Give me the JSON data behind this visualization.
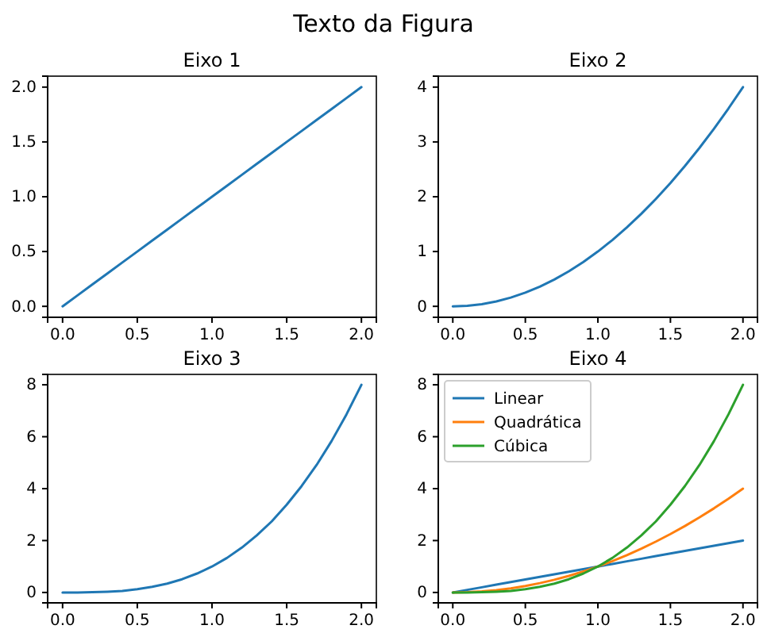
{
  "chart_data": [
    {
      "type": "other",
      "title": "Texto da Figura"
    },
    {
      "type": "line",
      "title": "Eixo 1",
      "x": [
        0,
        0.1,
        0.2,
        0.3,
        0.4,
        0.5,
        0.6,
        0.7,
        0.8,
        0.9,
        1,
        1.1,
        1.2,
        1.3,
        1.4,
        1.5,
        1.6,
        1.7,
        1.8,
        1.9,
        2
      ],
      "series": [
        {
          "color": "#1f77b4",
          "values": [
            0,
            0.1,
            0.2,
            0.3,
            0.4,
            0.5,
            0.6,
            0.7,
            0.8,
            0.9,
            1,
            1.1,
            1.2,
            1.3,
            1.4,
            1.5,
            1.6,
            1.7,
            1.8,
            1.9,
            2
          ]
        }
      ],
      "xlim": [
        -0.1,
        2.1
      ],
      "xticks": [
        {
          "value": 0,
          "label": "0.0"
        },
        {
          "value": 0.5,
          "label": "0.5"
        },
        {
          "value": 1,
          "label": "1.0"
        },
        {
          "value": 1.5,
          "label": "1.5"
        },
        {
          "value": 2,
          "label": "2.0"
        }
      ],
      "ylim": [
        -0.1,
        2.1
      ],
      "yticks": [
        {
          "value": 0,
          "label": "0.0"
        },
        {
          "value": 0.5,
          "label": "0.5"
        },
        {
          "value": 1,
          "label": "1.0"
        },
        {
          "value": 1.5,
          "label": "1.5"
        },
        {
          "value": 2,
          "label": "2.0"
        }
      ],
      "grid": false,
      "legend": false
    },
    {
      "type": "line",
      "title": "Eixo 2",
      "x": [
        0,
        0.1,
        0.2,
        0.3,
        0.4,
        0.5,
        0.6,
        0.7,
        0.8,
        0.9,
        1,
        1.1,
        1.2,
        1.3,
        1.4,
        1.5,
        1.6,
        1.7,
        1.8,
        1.9,
        2
      ],
      "series": [
        {
          "color": "#1f77b4",
          "values": [
            0,
            0.01,
            0.04,
            0.09,
            0.16,
            0.25,
            0.36,
            0.49,
            0.64,
            0.81,
            1,
            1.21,
            1.44,
            1.69,
            1.96,
            2.25,
            2.56,
            2.89,
            3.24,
            3.61,
            4
          ]
        }
      ],
      "xlim": [
        -0.1,
        2.1
      ],
      "xticks": [
        {
          "value": 0,
          "label": "0.0"
        },
        {
          "value": 0.5,
          "label": "0.5"
        },
        {
          "value": 1,
          "label": "1.0"
        },
        {
          "value": 1.5,
          "label": "1.5"
        },
        {
          "value": 2,
          "label": "2.0"
        }
      ],
      "ylim": [
        -0.2,
        4.2
      ],
      "yticks": [
        0,
        1,
        2,
        3,
        4
      ],
      "grid": false,
      "legend": false
    },
    {
      "type": "line",
      "title": "Eixo 3",
      "x": [
        0,
        0.1,
        0.2,
        0.3,
        0.4,
        0.5,
        0.6,
        0.7,
        0.8,
        0.9,
        1,
        1.1,
        1.2,
        1.3,
        1.4,
        1.5,
        1.6,
        1.7,
        1.8,
        1.9,
        2
      ],
      "series": [
        {
          "color": "#1f77b4",
          "values": [
            0,
            0,
            0.01,
            0.03,
            0.06,
            0.13,
            0.22,
            0.34,
            0.51,
            0.73,
            1,
            1.33,
            1.73,
            2.2,
            2.74,
            3.38,
            4.1,
            4.91,
            5.83,
            6.86,
            8
          ]
        }
      ],
      "xlim": [
        -0.1,
        2.1
      ],
      "xticks": [
        {
          "value": 0,
          "label": "0.0"
        },
        {
          "value": 0.5,
          "label": "0.5"
        },
        {
          "value": 1,
          "label": "1.0"
        },
        {
          "value": 1.5,
          "label": "1.5"
        },
        {
          "value": 2,
          "label": "2.0"
        }
      ],
      "ylim": [
        -0.4,
        8.4
      ],
      "yticks": [
        0,
        2,
        4,
        6,
        8
      ],
      "grid": false,
      "legend": false
    },
    {
      "type": "line",
      "title": "Eixo 4",
      "x": [
        0,
        0.1,
        0.2,
        0.3,
        0.4,
        0.5,
        0.6,
        0.7,
        0.8,
        0.9,
        1,
        1.1,
        1.2,
        1.3,
        1.4,
        1.5,
        1.6,
        1.7,
        1.8,
        1.9,
        2
      ],
      "series": [
        {
          "name": "Linear",
          "color": "#1f77b4",
          "values": [
            0,
            0.1,
            0.2,
            0.3,
            0.4,
            0.5,
            0.6,
            0.7,
            0.8,
            0.9,
            1,
            1.1,
            1.2,
            1.3,
            1.4,
            1.5,
            1.6,
            1.7,
            1.8,
            1.9,
            2
          ]
        },
        {
          "name": "Quadrática",
          "color": "#ff7f0e",
          "values": [
            0,
            0.01,
            0.04,
            0.09,
            0.16,
            0.25,
            0.36,
            0.49,
            0.64,
            0.81,
            1,
            1.21,
            1.44,
            1.69,
            1.96,
            2.25,
            2.56,
            2.89,
            3.24,
            3.61,
            4
          ]
        },
        {
          "name": "Cúbica",
          "color": "#2ca02c",
          "values": [
            0,
            0,
            0.01,
            0.03,
            0.06,
            0.13,
            0.22,
            0.34,
            0.51,
            0.73,
            1,
            1.33,
            1.73,
            2.2,
            2.74,
            3.38,
            4.1,
            4.91,
            5.83,
            6.86,
            8
          ]
        }
      ],
      "xlim": [
        -0.1,
        2.1
      ],
      "xticks": [
        {
          "value": 0,
          "label": "0.0"
        },
        {
          "value": 0.5,
          "label": "0.5"
        },
        {
          "value": 1,
          "label": "1.0"
        },
        {
          "value": 1.5,
          "label": "1.5"
        },
        {
          "value": 2,
          "label": "2.0"
        }
      ],
      "ylim": [
        -0.4,
        8.4
      ],
      "yticks": [
        0,
        2,
        4,
        6,
        8
      ],
      "grid": false,
      "legend": "top left"
    }
  ]
}
